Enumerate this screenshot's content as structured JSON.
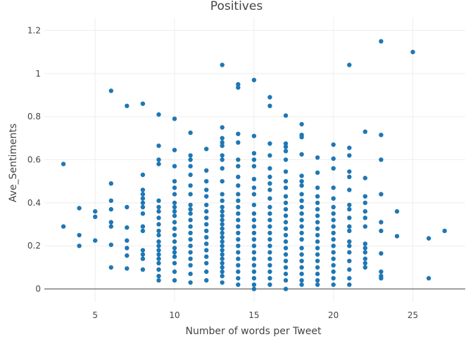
{
  "chart_data": {
    "type": "scatter",
    "title": "Positives",
    "xlabel": "Number of words per Tweet",
    "ylabel": "Ave_Sentiments",
    "xlim": [
      1.8,
      28.3
    ],
    "ylim": [
      -0.06,
      1.26
    ],
    "xticks": [
      5,
      10,
      15,
      20,
      25
    ],
    "yticks": [
      0,
      0.2,
      0.4,
      0.6,
      0.8,
      1,
      1.2
    ],
    "ytick_labels": [
      "0",
      "0.2",
      "0.4",
      "0.6",
      "0.8",
      "1",
      "1.2"
    ],
    "grid": true,
    "marker_color": "#1f77b4",
    "points": [
      [
        3,
        0.58
      ],
      [
        3,
        0.29
      ],
      [
        4,
        0.375
      ],
      [
        4,
        0.25
      ],
      [
        4,
        0.2
      ],
      [
        5,
        0.36
      ],
      [
        5,
        0.335
      ],
      [
        5,
        0.225
      ],
      [
        6,
        0.92
      ],
      [
        6,
        0.49
      ],
      [
        6,
        0.41
      ],
      [
        6,
        0.37
      ],
      [
        6,
        0.31
      ],
      [
        6,
        0.29
      ],
      [
        6,
        0.205
      ],
      [
        6,
        0.1
      ],
      [
        7,
        0.85
      ],
      [
        7,
        0.38
      ],
      [
        7,
        0.285
      ],
      [
        7,
        0.225
      ],
      [
        7,
        0.19
      ],
      [
        7,
        0.155
      ],
      [
        7,
        0.095
      ],
      [
        8,
        0.86
      ],
      [
        8,
        0.53
      ],
      [
        8,
        0.46
      ],
      [
        8,
        0.44
      ],
      [
        8,
        0.42
      ],
      [
        8,
        0.4
      ],
      [
        8,
        0.38
      ],
      [
        8,
        0.35
      ],
      [
        8,
        0.29
      ],
      [
        8,
        0.27
      ],
      [
        8,
        0.18
      ],
      [
        8,
        0.16
      ],
      [
        8,
        0.14
      ],
      [
        8,
        0.09
      ],
      [
        9,
        0.81
      ],
      [
        9,
        0.665
      ],
      [
        9,
        0.6
      ],
      [
        9,
        0.58
      ],
      [
        9,
        0.41
      ],
      [
        9,
        0.38
      ],
      [
        9,
        0.36
      ],
      [
        9,
        0.33
      ],
      [
        9,
        0.3
      ],
      [
        9,
        0.27
      ],
      [
        9,
        0.25
      ],
      [
        9,
        0.22
      ],
      [
        9,
        0.2
      ],
      [
        9,
        0.18
      ],
      [
        9,
        0.16
      ],
      [
        9,
        0.14
      ],
      [
        9,
        0.12
      ],
      [
        9,
        0.09
      ],
      [
        9,
        0.06
      ],
      [
        9,
        0.04
      ],
      [
        10,
        0.79
      ],
      [
        10,
        0.645
      ],
      [
        10,
        0.57
      ],
      [
        10,
        0.5
      ],
      [
        10,
        0.47
      ],
      [
        10,
        0.44
      ],
      [
        10,
        0.4
      ],
      [
        10,
        0.38
      ],
      [
        10,
        0.36
      ],
      [
        10,
        0.34
      ],
      [
        10,
        0.31
      ],
      [
        10,
        0.28
      ],
      [
        10,
        0.25
      ],
      [
        10,
        0.22
      ],
      [
        10,
        0.19
      ],
      [
        10,
        0.17
      ],
      [
        10,
        0.15
      ],
      [
        10,
        0.12
      ],
      [
        10,
        0.08
      ],
      [
        10,
        0.04
      ],
      [
        11,
        0.725
      ],
      [
        11,
        0.62
      ],
      [
        11,
        0.6
      ],
      [
        11,
        0.57
      ],
      [
        11,
        0.53
      ],
      [
        11,
        0.48
      ],
      [
        11,
        0.44
      ],
      [
        11,
        0.39
      ],
      [
        11,
        0.37
      ],
      [
        11,
        0.35
      ],
      [
        11,
        0.32
      ],
      [
        11,
        0.29
      ],
      [
        11,
        0.26
      ],
      [
        11,
        0.23
      ],
      [
        11,
        0.2
      ],
      [
        11,
        0.17
      ],
      [
        11,
        0.14
      ],
      [
        11,
        0.11
      ],
      [
        11,
        0.07
      ],
      [
        11,
        0.03
      ],
      [
        12,
        0.65
      ],
      [
        12,
        0.55
      ],
      [
        12,
        0.5
      ],
      [
        12,
        0.46
      ],
      [
        12,
        0.43
      ],
      [
        12,
        0.39
      ],
      [
        12,
        0.36
      ],
      [
        12,
        0.33
      ],
      [
        12,
        0.3
      ],
      [
        12,
        0.27
      ],
      [
        12,
        0.24
      ],
      [
        12,
        0.21
      ],
      [
        12,
        0.18
      ],
      [
        12,
        0.15
      ],
      [
        12,
        0.12
      ],
      [
        12,
        0.08
      ],
      [
        12,
        0.04
      ],
      [
        13,
        1.04
      ],
      [
        13,
        0.75
      ],
      [
        13,
        0.7
      ],
      [
        13,
        0.68
      ],
      [
        13,
        0.665
      ],
      [
        13,
        0.62
      ],
      [
        13,
        0.6
      ],
      [
        13,
        0.56
      ],
      [
        13,
        0.5
      ],
      [
        13,
        0.44
      ],
      [
        13,
        0.41
      ],
      [
        13,
        0.38
      ],
      [
        13,
        0.36
      ],
      [
        13,
        0.34
      ],
      [
        13,
        0.32
      ],
      [
        13,
        0.3
      ],
      [
        13,
        0.28
      ],
      [
        13,
        0.26
      ],
      [
        13,
        0.24
      ],
      [
        13,
        0.22
      ],
      [
        13,
        0.2
      ],
      [
        13,
        0.18
      ],
      [
        13,
        0.16
      ],
      [
        13,
        0.14
      ],
      [
        13,
        0.12
      ],
      [
        13,
        0.1
      ],
      [
        13,
        0.08
      ],
      [
        13,
        0.06
      ],
      [
        13,
        0.03
      ],
      [
        14,
        0.95
      ],
      [
        14,
        0.935
      ],
      [
        14,
        0.72
      ],
      [
        14,
        0.68
      ],
      [
        14,
        0.6
      ],
      [
        14,
        0.57
      ],
      [
        14,
        0.52
      ],
      [
        14,
        0.48
      ],
      [
        14,
        0.44
      ],
      [
        14,
        0.41
      ],
      [
        14,
        0.38
      ],
      [
        14,
        0.35
      ],
      [
        14,
        0.32
      ],
      [
        14,
        0.29
      ],
      [
        14,
        0.26
      ],
      [
        14,
        0.23
      ],
      [
        14,
        0.2
      ],
      [
        14,
        0.17
      ],
      [
        14,
        0.14
      ],
      [
        14,
        0.11
      ],
      [
        14,
        0.08
      ],
      [
        14,
        0.05
      ],
      [
        14,
        0.02
      ],
      [
        15,
        0.97
      ],
      [
        15,
        0.71
      ],
      [
        15,
        0.63
      ],
      [
        15,
        0.6
      ],
      [
        15,
        0.57
      ],
      [
        15,
        0.51
      ],
      [
        15,
        0.47
      ],
      [
        15,
        0.44
      ],
      [
        15,
        0.39
      ],
      [
        15,
        0.35
      ],
      [
        15,
        0.32
      ],
      [
        15,
        0.29
      ],
      [
        15,
        0.26
      ],
      [
        15,
        0.23
      ],
      [
        15,
        0.2
      ],
      [
        15,
        0.17
      ],
      [
        15,
        0.14
      ],
      [
        15,
        0.11
      ],
      [
        15,
        0.08
      ],
      [
        15,
        0.05
      ],
      [
        15,
        0.02
      ],
      [
        15,
        0.0
      ],
      [
        16,
        0.89
      ],
      [
        16,
        0.85
      ],
      [
        16,
        0.675
      ],
      [
        16,
        0.62
      ],
      [
        16,
        0.56
      ],
      [
        16,
        0.52
      ],
      [
        16,
        0.49
      ],
      [
        16,
        0.46
      ],
      [
        16,
        0.42
      ],
      [
        16,
        0.38
      ],
      [
        16,
        0.35
      ],
      [
        16,
        0.32
      ],
      [
        16,
        0.29
      ],
      [
        16,
        0.26
      ],
      [
        16,
        0.23
      ],
      [
        16,
        0.2
      ],
      [
        16,
        0.17
      ],
      [
        16,
        0.14
      ],
      [
        16,
        0.11
      ],
      [
        16,
        0.08
      ],
      [
        16,
        0.05
      ],
      [
        16,
        0.02
      ],
      [
        17,
        0.805
      ],
      [
        17,
        0.675
      ],
      [
        17,
        0.66
      ],
      [
        17,
        0.64
      ],
      [
        17,
        0.6
      ],
      [
        17,
        0.545
      ],
      [
        17,
        0.5
      ],
      [
        17,
        0.47
      ],
      [
        17,
        0.43
      ],
      [
        17,
        0.4
      ],
      [
        17,
        0.37
      ],
      [
        17,
        0.34
      ],
      [
        17,
        0.31
      ],
      [
        17,
        0.28
      ],
      [
        17,
        0.25
      ],
      [
        17,
        0.22
      ],
      [
        17,
        0.19
      ],
      [
        17,
        0.16
      ],
      [
        17,
        0.13
      ],
      [
        17,
        0.1
      ],
      [
        17,
        0.07
      ],
      [
        17,
        0.04
      ],
      [
        17,
        0.0
      ],
      [
        18,
        0.765
      ],
      [
        18,
        0.715
      ],
      [
        18,
        0.705
      ],
      [
        18,
        0.625
      ],
      [
        18,
        0.525
      ],
      [
        18,
        0.5
      ],
      [
        18,
        0.48
      ],
      [
        18,
        0.44
      ],
      [
        18,
        0.41
      ],
      [
        18,
        0.38
      ],
      [
        18,
        0.35
      ],
      [
        18,
        0.32
      ],
      [
        18,
        0.29
      ],
      [
        18,
        0.26
      ],
      [
        18,
        0.23
      ],
      [
        18,
        0.19
      ],
      [
        18,
        0.16
      ],
      [
        18,
        0.13
      ],
      [
        18,
        0.1
      ],
      [
        18,
        0.07
      ],
      [
        18,
        0.04
      ],
      [
        18,
        0.02
      ],
      [
        19,
        0.61
      ],
      [
        19,
        0.54
      ],
      [
        19,
        0.47
      ],
      [
        19,
        0.43
      ],
      [
        19,
        0.4
      ],
      [
        19,
        0.37
      ],
      [
        19,
        0.34
      ],
      [
        19,
        0.31
      ],
      [
        19,
        0.28
      ],
      [
        19,
        0.25
      ],
      [
        19,
        0.22
      ],
      [
        19,
        0.19
      ],
      [
        19,
        0.16
      ],
      [
        19,
        0.13
      ],
      [
        19,
        0.1
      ],
      [
        19,
        0.07
      ],
      [
        19,
        0.04
      ],
      [
        19,
        0.02
      ],
      [
        20,
        0.67
      ],
      [
        20,
        0.605
      ],
      [
        20,
        0.56
      ],
      [
        20,
        0.47
      ],
      [
        20,
        0.42
      ],
      [
        20,
        0.38
      ],
      [
        20,
        0.35
      ],
      [
        20,
        0.32
      ],
      [
        20,
        0.29
      ],
      [
        20,
        0.26
      ],
      [
        20,
        0.23
      ],
      [
        20,
        0.2
      ],
      [
        20,
        0.17
      ],
      [
        20,
        0.14
      ],
      [
        20,
        0.11
      ],
      [
        20,
        0.08
      ],
      [
        20,
        0.05
      ],
      [
        20,
        0.02
      ],
      [
        21,
        1.04
      ],
      [
        21,
        0.655
      ],
      [
        21,
        0.62
      ],
      [
        21,
        0.545
      ],
      [
        21,
        0.52
      ],
      [
        21,
        0.46
      ],
      [
        21,
        0.39
      ],
      [
        21,
        0.37
      ],
      [
        21,
        0.33
      ],
      [
        21,
        0.29
      ],
      [
        21,
        0.27
      ],
      [
        21,
        0.22
      ],
      [
        21,
        0.2
      ],
      [
        21,
        0.17
      ],
      [
        21,
        0.13
      ],
      [
        21,
        0.09
      ],
      [
        21,
        0.05
      ],
      [
        21,
        0.02
      ],
      [
        22,
        0.73
      ],
      [
        22,
        0.515
      ],
      [
        22,
        0.43
      ],
      [
        22,
        0.4
      ],
      [
        22,
        0.36
      ],
      [
        22,
        0.33
      ],
      [
        22,
        0.29
      ],
      [
        22,
        0.21
      ],
      [
        22,
        0.19
      ],
      [
        22,
        0.17
      ],
      [
        22,
        0.14
      ],
      [
        22,
        0.12
      ],
      [
        22,
        0.1
      ],
      [
        23,
        1.15
      ],
      [
        23,
        0.715
      ],
      [
        23,
        0.6
      ],
      [
        23,
        0.44
      ],
      [
        23,
        0.31
      ],
      [
        23,
        0.27
      ],
      [
        23,
        0.165
      ],
      [
        23,
        0.08
      ],
      [
        23,
        0.06
      ],
      [
        23,
        0.05
      ],
      [
        24,
        0.36
      ],
      [
        24,
        0.245
      ],
      [
        25,
        1.1
      ],
      [
        26,
        0.235
      ],
      [
        26,
        0.05
      ],
      [
        27,
        0.27
      ]
    ]
  }
}
